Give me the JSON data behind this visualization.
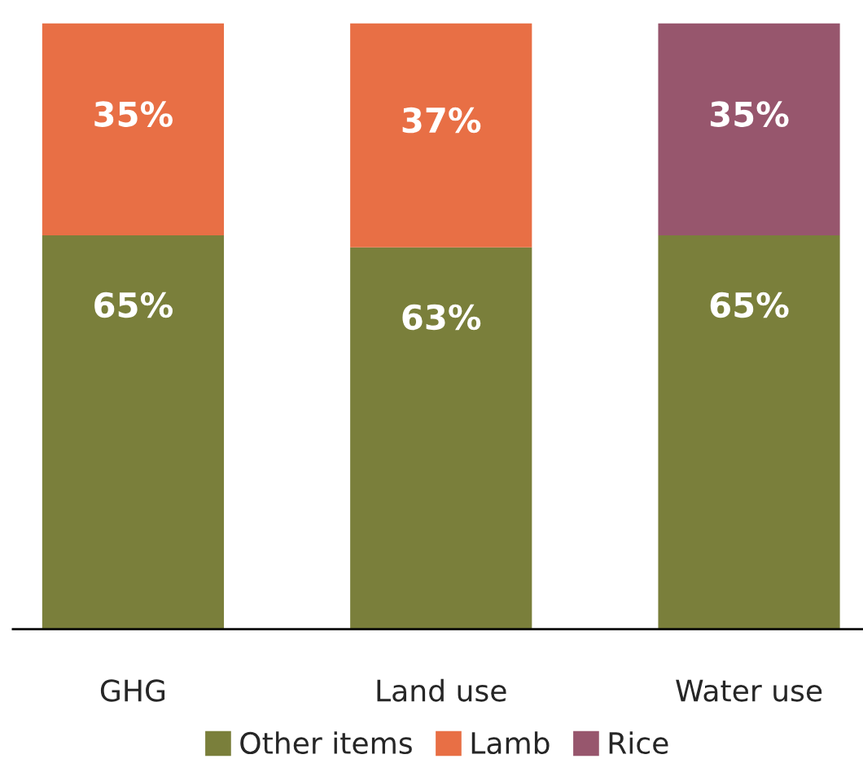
{
  "chart_data": {
    "type": "bar",
    "stacked": true,
    "categories": [
      "GHG",
      "Land use",
      "Water use"
    ],
    "series": [
      {
        "name": "Other items",
        "color": "#7a7f3b",
        "values": [
          65,
          63,
          65
        ],
        "value_labels": [
          "65%",
          "63%",
          "65%"
        ]
      },
      {
        "name": "Lamb",
        "color": "#e86f45",
        "values": [
          35,
          37,
          null
        ],
        "value_labels": [
          "35%",
          "37%",
          null
        ]
      },
      {
        "name": "Rice",
        "color": "#97566d",
        "values": [
          null,
          null,
          35
        ],
        "value_labels": [
          null,
          null,
          "35%"
        ]
      }
    ],
    "tick_labels": "x",
    "grid": false,
    "legend": "bottom"
  }
}
